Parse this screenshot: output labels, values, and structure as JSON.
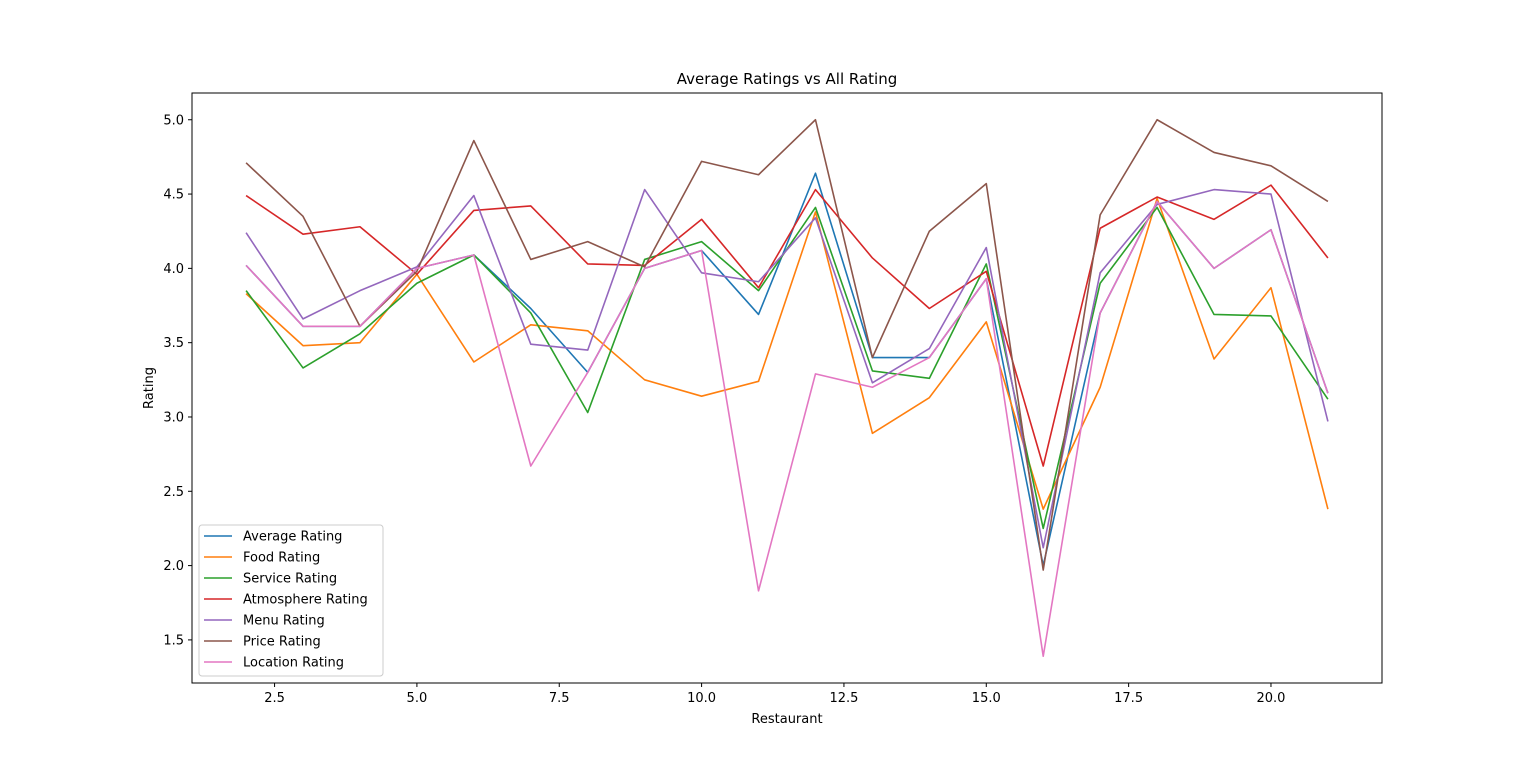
{
  "chart_data": {
    "type": "line",
    "title": "Average Ratings vs All Rating",
    "xlabel": "Restaurant",
    "ylabel": "Rating",
    "xlim": [
      1.05,
      21.95
    ],
    "ylim": [
      1.21,
      5.18
    ],
    "xticks": [
      "2.5",
      "5.0",
      "7.5",
      "10.0",
      "12.5",
      "15.0",
      "17.5",
      "20.0"
    ],
    "yticks": [
      "1.5",
      "2.0",
      "2.5",
      "3.0",
      "3.5",
      "4.0",
      "4.5",
      "5.0"
    ],
    "grid": false,
    "legend_position": "lower-left",
    "x": [
      2,
      3,
      4,
      5,
      6,
      7,
      8,
      9,
      10,
      11,
      12,
      13,
      14,
      15,
      16,
      17,
      18,
      19,
      20,
      21
    ],
    "series": [
      {
        "name": "Average Rating",
        "color": "#1f77b4",
        "values": [
          4.02,
          3.61,
          3.61,
          4.0,
          4.09,
          3.73,
          3.3,
          4.0,
          4.12,
          3.69,
          4.64,
          3.4,
          3.4,
          3.93,
          2.0,
          3.7,
          4.45,
          4.0,
          4.26,
          3.16
        ]
      },
      {
        "name": "Food Rating",
        "color": "#ff7f0e",
        "values": [
          3.83,
          3.48,
          3.5,
          3.96,
          3.37,
          3.62,
          3.58,
          3.25,
          3.14,
          3.24,
          4.38,
          2.89,
          3.13,
          3.64,
          2.38,
          3.2,
          4.47,
          3.39,
          3.87,
          2.38
        ]
      },
      {
        "name": "Service Rating",
        "color": "#2ca02c",
        "values": [
          3.85,
          3.33,
          3.56,
          3.9,
          4.09,
          3.7,
          3.03,
          4.06,
          4.18,
          3.85,
          4.41,
          3.31,
          3.26,
          4.03,
          2.25,
          3.9,
          4.41,
          3.69,
          3.68,
          3.12
        ]
      },
      {
        "name": "Atmosphere Rating",
        "color": "#d62728",
        "values": [
          4.49,
          4.23,
          4.28,
          3.96,
          4.39,
          4.42,
          4.03,
          4.02,
          4.33,
          3.87,
          4.53,
          4.07,
          3.73,
          3.98,
          2.67,
          4.27,
          4.48,
          4.33,
          4.56,
          4.07
        ]
      },
      {
        "name": "Menu Rating",
        "color": "#9467bd",
        "values": [
          4.24,
          3.66,
          3.85,
          4.01,
          4.49,
          3.49,
          3.45,
          4.53,
          3.97,
          3.91,
          4.34,
          3.23,
          3.46,
          4.14,
          2.12,
          3.97,
          4.43,
          4.53,
          4.5,
          2.97
        ]
      },
      {
        "name": "Price Rating",
        "color": "#8c564b",
        "values": [
          4.71,
          4.35,
          3.61,
          3.98,
          4.86,
          4.06,
          4.18,
          4.01,
          4.72,
          4.63,
          5.0,
          3.4,
          4.25,
          4.57,
          1.97,
          4.36,
          5.0,
          4.78,
          4.69,
          4.45
        ]
      },
      {
        "name": "Location Rating",
        "color": "#e377c2",
        "values": [
          4.02,
          3.61,
          3.61,
          4.0,
          4.09,
          2.67,
          3.3,
          4.0,
          4.12,
          1.83,
          3.29,
          3.2,
          3.4,
          3.93,
          1.39,
          3.7,
          4.45,
          4.0,
          4.26,
          3.16
        ]
      }
    ]
  }
}
